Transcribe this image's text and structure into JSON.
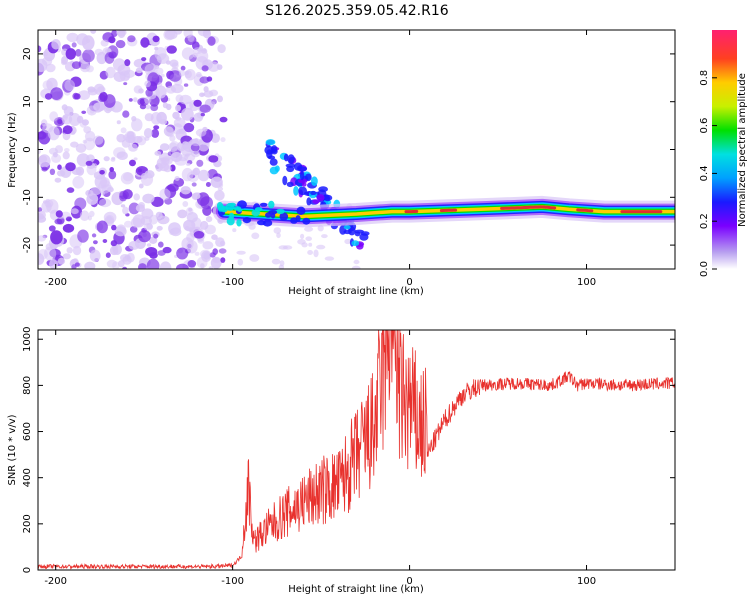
{
  "title": "S126.2025.359.05.42.R16",
  "colors": {
    "snr_line": "#e8312d",
    "blob_violet": "#7a2ee6",
    "blob_pale": "#d9c6f7",
    "ridge_core": "#e03030"
  },
  "chart_data": [
    {
      "type": "heatmap",
      "title": "S126.2025.359.05.42.R16",
      "xlabel": "Height of straight line (km)",
      "ylabel": "Frequency (Hz)",
      "xlim": [
        -210,
        150
      ],
      "ylim": [
        -25,
        25
      ],
      "x_ticks": [
        -200,
        -100,
        0,
        100
      ],
      "y_ticks": [
        -20,
        -10,
        0,
        10,
        20
      ],
      "colorbar": {
        "label": "Normalized spectral amplitude",
        "range": [
          0,
          1
        ],
        "ticks": [
          "0.0",
          "0.2",
          "0.4",
          "0.6",
          "0.8"
        ]
      },
      "regions": {
        "noise_band": {
          "x": [
            -210,
            -105
          ],
          "y": [
            -25,
            25
          ],
          "amplitude": 0.1
        },
        "dispersive_arm": {
          "points": [
            [
              -80,
              -1
            ],
            [
              -60,
              -7
            ],
            [
              -40,
              -14
            ],
            [
              -25,
              -20
            ]
          ]
        },
        "ridge": {
          "points": [
            [
              -105,
              -13
            ],
            [
              -60,
              -14
            ],
            [
              -30,
              -13.5
            ],
            [
              -10,
              -13
            ],
            [
              0,
              -13
            ],
            [
              40,
              -12.5
            ],
            [
              75,
              -12
            ],
            [
              90,
              -12.5
            ],
            [
              110,
              -13
            ],
            [
              150,
              -13
            ]
          ],
          "amplitude": 0.85
        }
      },
      "grid": false
    },
    {
      "type": "line",
      "xlabel": "Height of straight line (km)",
      "ylabel": "SNR (10 * v/v)",
      "xlim": [
        -210,
        150
      ],
      "ylim": [
        0,
        1040
      ],
      "x_ticks": [
        -200,
        -100,
        0,
        100
      ],
      "y_ticks": [
        0,
        200,
        400,
        600,
        800,
        1000
      ],
      "series": [
        {
          "x": [
            -210,
            -150,
            -110,
            -100,
            -95,
            -91,
            -88,
            -80,
            -70,
            -60,
            -50,
            -40,
            -30,
            -20,
            -15,
            -10,
            -5,
            0,
            5,
            10,
            20,
            30,
            40,
            60,
            80,
            85,
            90,
            95,
            100,
            120,
            150
          ],
          "values": [
            15,
            15,
            15,
            20,
            60,
            300,
            100,
            150,
            200,
            240,
            280,
            300,
            400,
            500,
            700,
            1000,
            600,
            580,
            520,
            500,
            650,
            760,
            800,
            810,
            800,
            820,
            840,
            800,
            810,
            800,
            810
          ]
        }
      ],
      "grid": false
    }
  ]
}
